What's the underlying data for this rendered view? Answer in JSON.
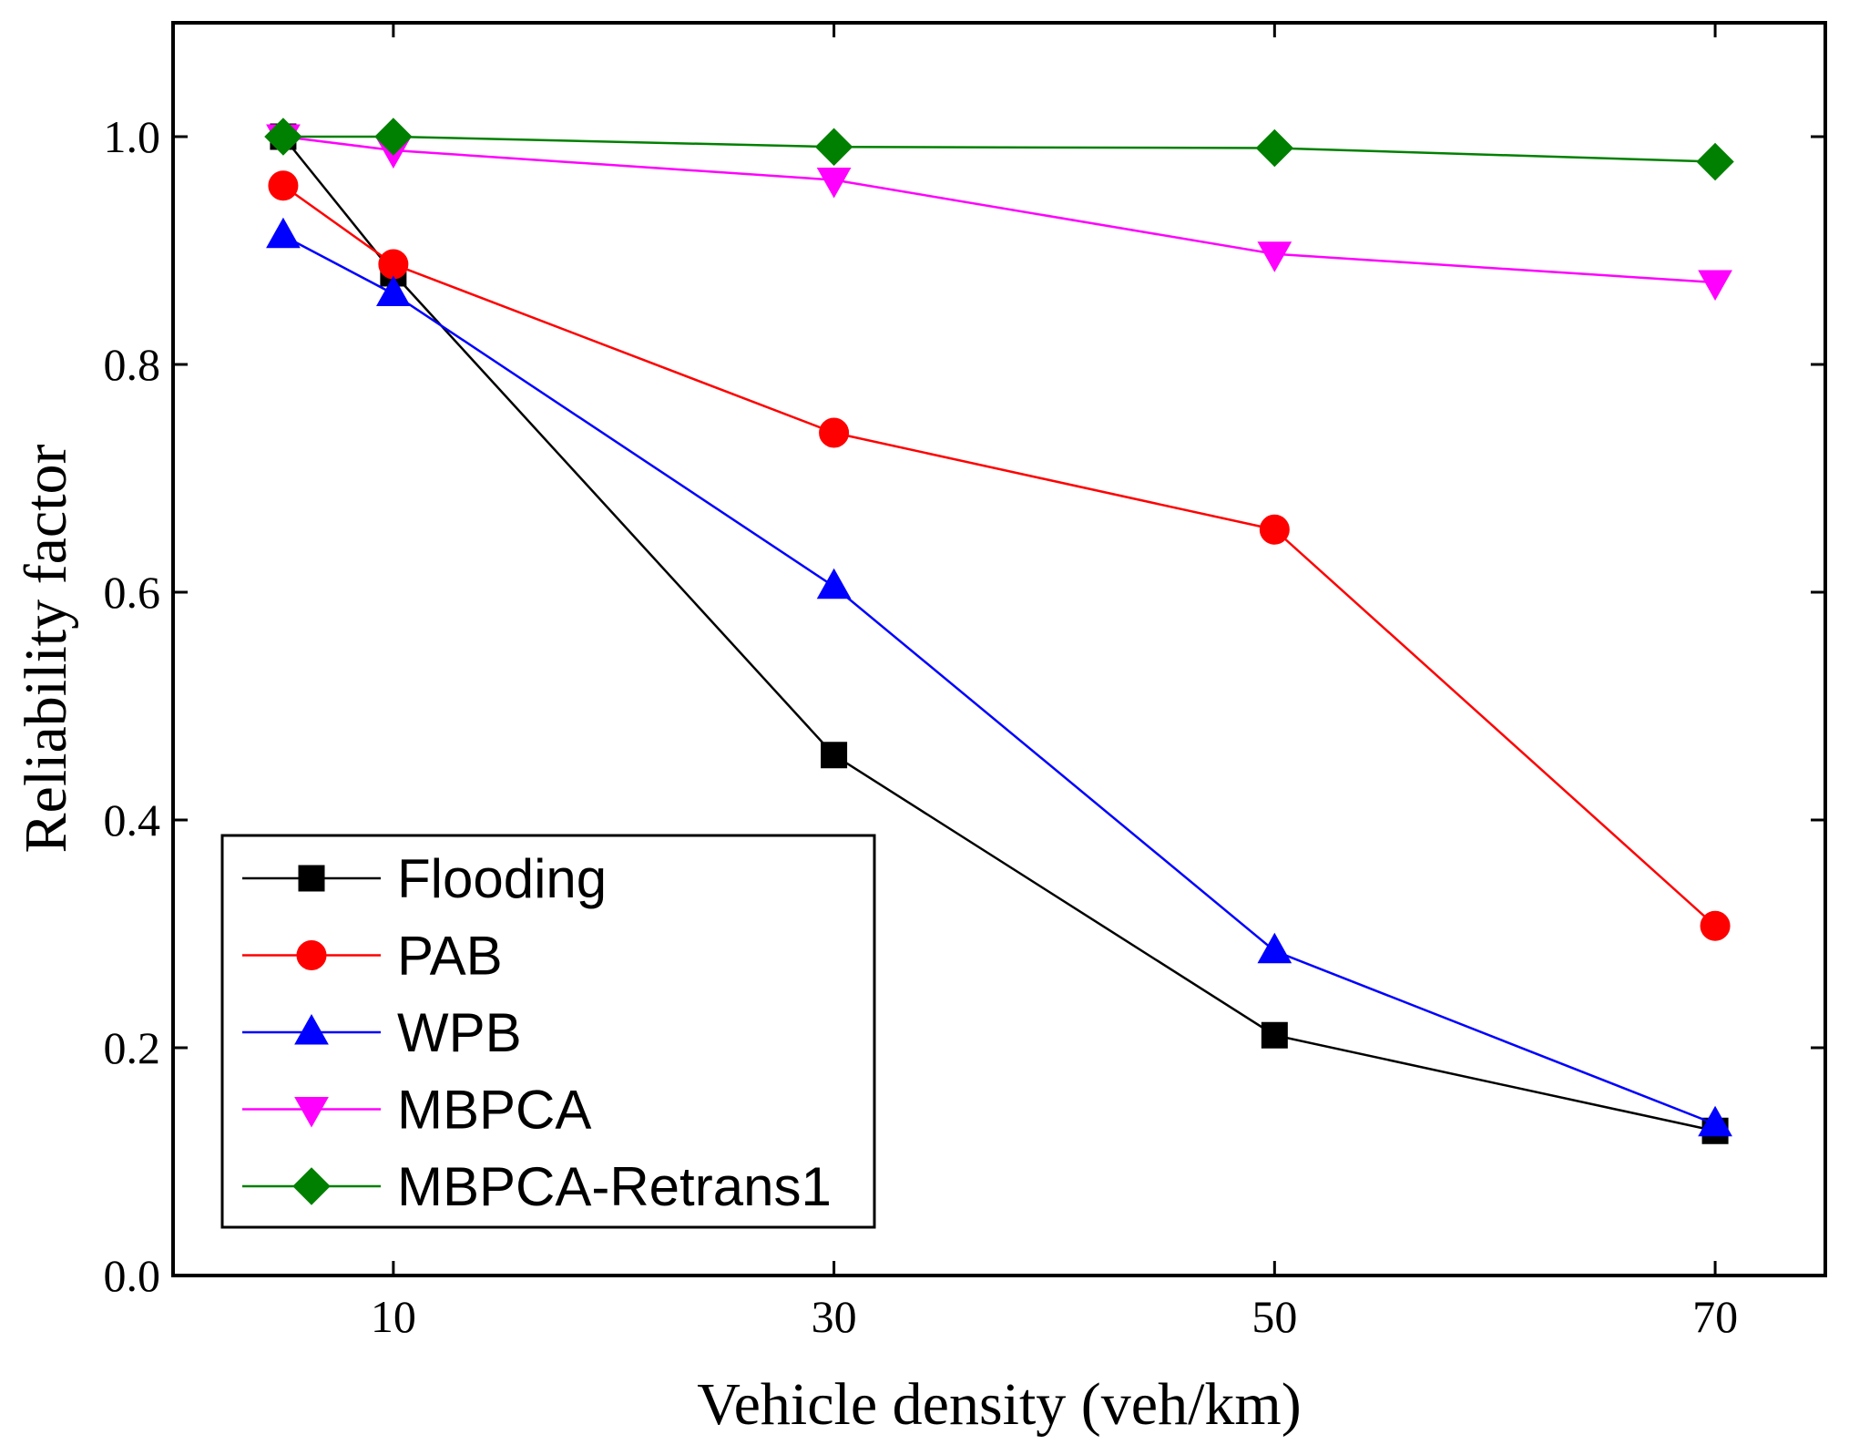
{
  "chart_data": {
    "type": "line",
    "title": "",
    "xlabel": "Vehicle density (veh/km)",
    "ylabel": "Reliability factor",
    "xlim": [
      0,
      75
    ],
    "ylim": [
      0,
      1.1
    ],
    "xticks": [
      10,
      30,
      50,
      70
    ],
    "xtick_labels": [
      "10",
      "30",
      "50",
      "70"
    ],
    "yticks": [
      0,
      0.2,
      0.4,
      0.6,
      0.8,
      1.0
    ],
    "ytick_labels": [
      "0.0",
      "0.2",
      "0.4",
      "0.6",
      "0.8",
      "1.0"
    ],
    "x": [
      5,
      10,
      30,
      50,
      70
    ],
    "legend_position": "bottom-left",
    "series": [
      {
        "name": "Flooding",
        "color": "#000000",
        "marker": "square",
        "values": [
          1.0,
          0.88,
          0.457,
          0.211,
          0.127
        ]
      },
      {
        "name": "PAB",
        "color": "#ff0000",
        "marker": "circle",
        "values": [
          0.957,
          0.888,
          0.74,
          0.655,
          0.307
        ]
      },
      {
        "name": "WPB",
        "color": "#0000ff",
        "marker": "triangle-up",
        "values": [
          0.913,
          0.862,
          0.605,
          0.285,
          0.133
        ]
      },
      {
        "name": "MBPCA",
        "color": "#ff00ff",
        "marker": "triangle-down",
        "values": [
          1.0,
          0.988,
          0.962,
          0.897,
          0.872
        ]
      },
      {
        "name": "MBPCA-Retrans1",
        "color": "#008000",
        "marker": "diamond",
        "values": [
          1.0,
          1.0,
          0.991,
          0.99,
          0.978
        ]
      }
    ]
  }
}
